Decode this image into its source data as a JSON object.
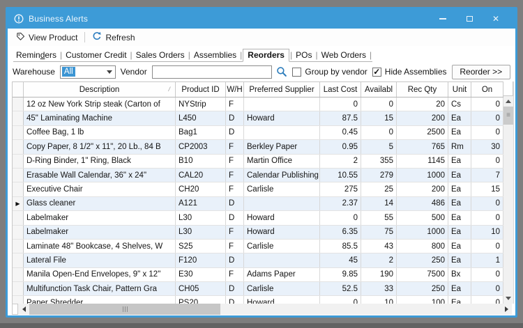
{
  "window": {
    "title": "Business Alerts"
  },
  "toolbar": {
    "view_product": "View Product",
    "refresh": "Refresh"
  },
  "tabs": [
    {
      "label": "Reminders",
      "accel": "d"
    },
    {
      "label": "Customer Credit"
    },
    {
      "label": "Sales Orders"
    },
    {
      "label": "Assemblies"
    },
    {
      "label": "Reorders",
      "active": true
    },
    {
      "label": "POs"
    },
    {
      "label": "Web Orders"
    }
  ],
  "filters": {
    "warehouse_label": "Warehouse",
    "warehouse_value": "All",
    "vendor_label": "Vendor",
    "vendor_value": "",
    "group_by_vendor_label": "Group by vendor",
    "group_by_vendor_checked": false,
    "hide_assemblies_label": "Hide Assemblies",
    "hide_assemblies_checked": true,
    "reorder_button": "Reorder >>"
  },
  "table": {
    "columns": [
      {
        "label": "Description",
        "sort": "asc"
      },
      {
        "label": "Product ID"
      },
      {
        "label": "W/H"
      },
      {
        "label": "Preferred Supplier"
      },
      {
        "label": "Last Cost"
      },
      {
        "label": "Availabl"
      },
      {
        "label": "Rec Qty"
      },
      {
        "label": "Unit"
      },
      {
        "label": "On"
      }
    ],
    "selected_row_index": 7,
    "rows": [
      {
        "description": "12 oz New York Strip steak (Carton of",
        "product_id": "NYStrip",
        "wh": "F",
        "supplier": "",
        "last_cost": "0",
        "availabl": "0",
        "rec_qty": "20",
        "unit": "Cs",
        "on": "0"
      },
      {
        "description": "45\" Laminating Machine",
        "product_id": "L450",
        "wh": "D",
        "supplier": "Howard",
        "last_cost": "87.5",
        "availabl": "15",
        "rec_qty": "200",
        "unit": "Ea",
        "on": "0"
      },
      {
        "description": "Coffee Bag, 1 lb",
        "product_id": "Bag1",
        "wh": "D",
        "supplier": "",
        "last_cost": "0.45",
        "availabl": "0",
        "rec_qty": "2500",
        "unit": "Ea",
        "on": "0"
      },
      {
        "description": "Copy Paper, 8 1/2\" x 11\", 20 Lb., 84 B",
        "product_id": "CP2003",
        "wh": "F",
        "supplier": "Berkley Paper",
        "last_cost": "0.95",
        "availabl": "5",
        "rec_qty": "765",
        "unit": "Rm",
        "on": "30"
      },
      {
        "description": "D-Ring Binder, 1\" Ring, Black",
        "product_id": "B10",
        "wh": "F",
        "supplier": "Martin Office",
        "last_cost": "2",
        "availabl": "355",
        "rec_qty": "1145",
        "unit": "Ea",
        "on": "0"
      },
      {
        "description": "Erasable Wall Calendar, 36\" x 24\"",
        "product_id": "CAL20",
        "wh": "F",
        "supplier": "Calendar Publishing",
        "last_cost": "10.55",
        "availabl": "279",
        "rec_qty": "1000",
        "unit": "Ea",
        "on": "7"
      },
      {
        "description": "Executive Chair",
        "product_id": "CH20",
        "wh": "F",
        "supplier": "Carlisle",
        "last_cost": "275",
        "availabl": "25",
        "rec_qty": "200",
        "unit": "Ea",
        "on": "15"
      },
      {
        "description": "Glass cleaner",
        "product_id": "A121",
        "wh": "D",
        "supplier": "",
        "last_cost": "2.37",
        "availabl": "14",
        "rec_qty": "486",
        "unit": "Ea",
        "on": "0"
      },
      {
        "description": "Labelmaker",
        "product_id": "L30",
        "wh": "D",
        "supplier": "Howard",
        "last_cost": "0",
        "availabl": "55",
        "rec_qty": "500",
        "unit": "Ea",
        "on": "0"
      },
      {
        "description": "Labelmaker",
        "product_id": "L30",
        "wh": "F",
        "supplier": "Howard",
        "last_cost": "6.35",
        "availabl": "75",
        "rec_qty": "1000",
        "unit": "Ea",
        "on": "10"
      },
      {
        "description": "Laminate 48\" Bookcase, 4 Shelves, W",
        "product_id": "S25",
        "wh": "F",
        "supplier": "Carlisle",
        "last_cost": "85.5",
        "availabl": "43",
        "rec_qty": "800",
        "unit": "Ea",
        "on": "0"
      },
      {
        "description": "Lateral File",
        "product_id": "F120",
        "wh": "D",
        "supplier": "",
        "last_cost": "45",
        "availabl": "2",
        "rec_qty": "250",
        "unit": "Ea",
        "on": "1"
      },
      {
        "description": "Manila Open-End Envelopes, 9\" x 12\"",
        "product_id": "E30",
        "wh": "F",
        "supplier": "Adams Paper",
        "last_cost": "9.85",
        "availabl": "190",
        "rec_qty": "7500",
        "unit": "Bx",
        "on": "0"
      },
      {
        "description": "Multifunction Task Chair, Pattern Gra",
        "product_id": "CH05",
        "wh": "D",
        "supplier": "Carlisle",
        "last_cost": "52.5",
        "availabl": "33",
        "rec_qty": "250",
        "unit": "Ea",
        "on": "0"
      },
      {
        "description": "Paper Shredder",
        "product_id": "PS20",
        "wh": "D",
        "supplier": "Howard",
        "last_cost": "0",
        "availabl": "10",
        "rec_qty": "100",
        "unit": "Ea",
        "on": "0"
      }
    ]
  },
  "colors": {
    "titlebar_blue": "#3d9bd7",
    "selection_blue": "#3c95d3",
    "alt_row_blue": "#e9f1fa",
    "desktop_gray": "#7e7e7e"
  }
}
